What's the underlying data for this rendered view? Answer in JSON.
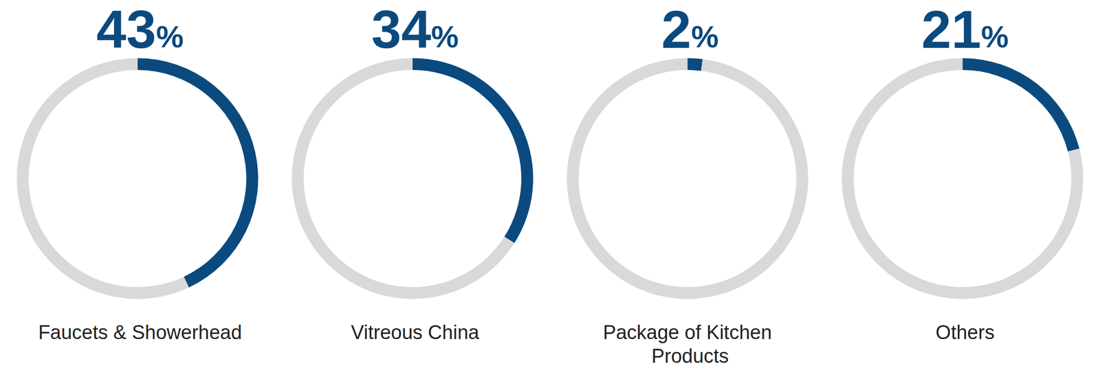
{
  "chart_data": {
    "type": "pie",
    "categories": [
      "Faucets & Showerhead",
      "Vitreous China",
      "Package of Kitchen Products",
      "Others"
    ],
    "values": [
      43,
      34,
      2,
      21
    ],
    "value_labels": [
      "43%",
      "34%",
      "2%",
      "21%"
    ],
    "color": "#0b4a7e",
    "data_labels": true
  }
}
